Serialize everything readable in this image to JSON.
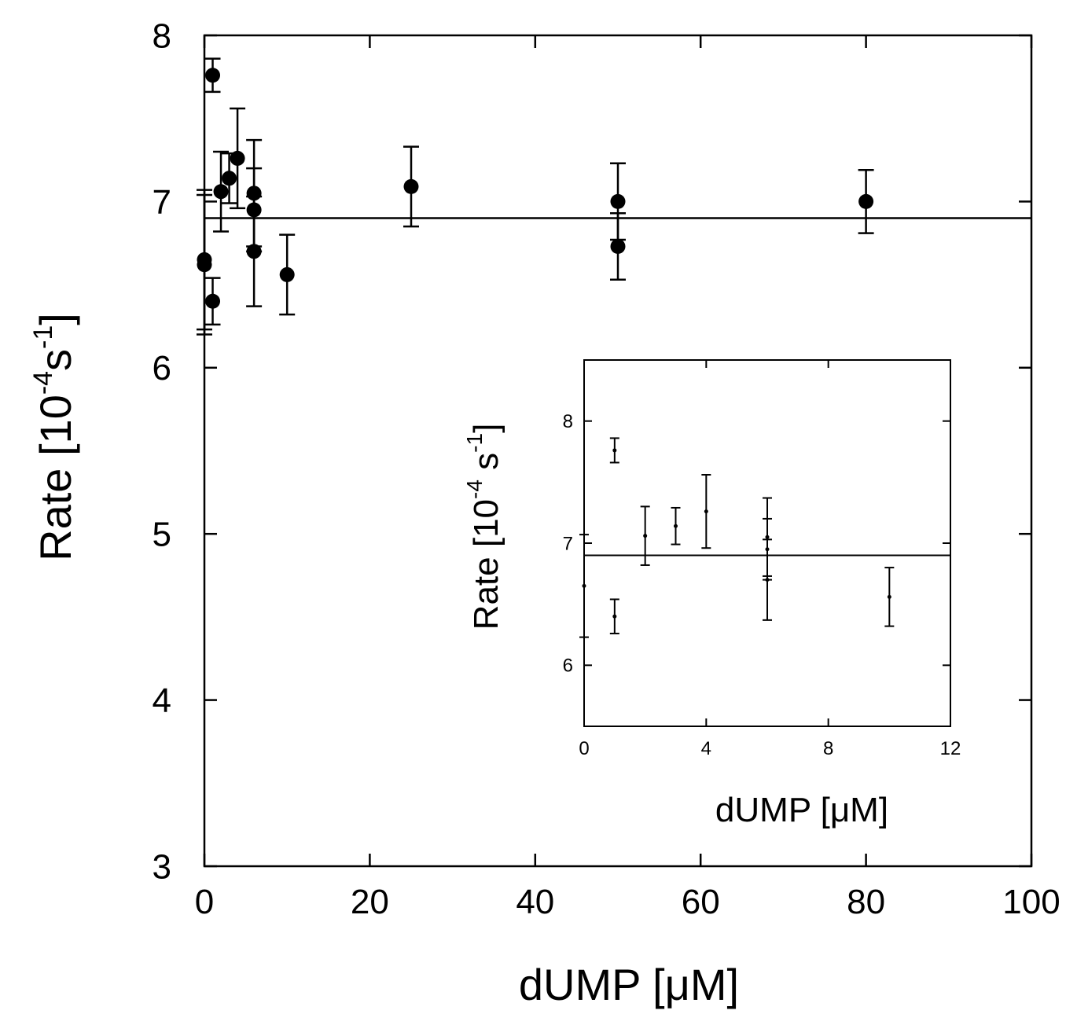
{
  "chart_data": [
    {
      "type": "scatter",
      "role": "main",
      "xlabel": "dUMP [μM]",
      "ylabel_parts": {
        "prefix": "Rate [10",
        "exp1": "-4",
        "mid": "s",
        "exp2": "-1",
        "suffix": "]"
      },
      "xlim": [
        0,
        100
      ],
      "ylim": [
        3,
        8
      ],
      "xticks": [
        0,
        20,
        40,
        60,
        80,
        100
      ],
      "yticks": [
        3,
        4,
        5,
        6,
        7,
        8
      ],
      "fit_line_y": 6.9,
      "points": [
        {
          "x": 0,
          "y": 6.65,
          "err": 0.42
        },
        {
          "x": 0,
          "y": 6.62,
          "err": 0.42
        },
        {
          "x": 1,
          "y": 7.76,
          "err": 0.1
        },
        {
          "x": 1,
          "y": 6.4,
          "err": 0.14
        },
        {
          "x": 2,
          "y": 7.06,
          "err": 0.24
        },
        {
          "x": 3,
          "y": 7.14,
          "err": 0.15
        },
        {
          "x": 4,
          "y": 7.26,
          "err": 0.3
        },
        {
          "x": 6,
          "y": 7.05,
          "err": 0.32
        },
        {
          "x": 6,
          "y": 6.95,
          "err": 0.25
        },
        {
          "x": 6,
          "y": 6.7,
          "err": 0.33
        },
        {
          "x": 10,
          "y": 6.56,
          "err": 0.24
        },
        {
          "x": 25,
          "y": 7.09,
          "err": 0.24
        },
        {
          "x": 50,
          "y": 7.0,
          "err": 0.23
        },
        {
          "x": 50,
          "y": 6.73,
          "err": 0.2
        },
        {
          "x": 80,
          "y": 7.0,
          "err": 0.19
        }
      ]
    },
    {
      "type": "scatter",
      "role": "inset",
      "xlabel": "dUMP [μM]",
      "ylabel_parts": {
        "prefix": "Rate [10",
        "exp1": "-4",
        "mid": " s",
        "exp2": "-1",
        "suffix": "]"
      },
      "xlim": [
        0,
        12
      ],
      "ylim": [
        5.5,
        8.5
      ],
      "xticks": [
        0,
        4,
        8,
        12
      ],
      "yticks": [
        6,
        7,
        8
      ],
      "fit_line_y": 6.9,
      "points": [
        {
          "x": 0,
          "y": 6.65,
          "err": 0.42
        },
        {
          "x": 1,
          "y": 7.76,
          "err": 0.1
        },
        {
          "x": 1,
          "y": 6.4,
          "err": 0.14
        },
        {
          "x": 2,
          "y": 7.06,
          "err": 0.24
        },
        {
          "x": 3,
          "y": 7.14,
          "err": 0.15
        },
        {
          "x": 4,
          "y": 7.26,
          "err": 0.3
        },
        {
          "x": 6,
          "y": 7.05,
          "err": 0.32
        },
        {
          "x": 6,
          "y": 6.95,
          "err": 0.25
        },
        {
          "x": 6,
          "y": 6.7,
          "err": 0.33
        },
        {
          "x": 10,
          "y": 6.56,
          "err": 0.24
        }
      ]
    }
  ]
}
